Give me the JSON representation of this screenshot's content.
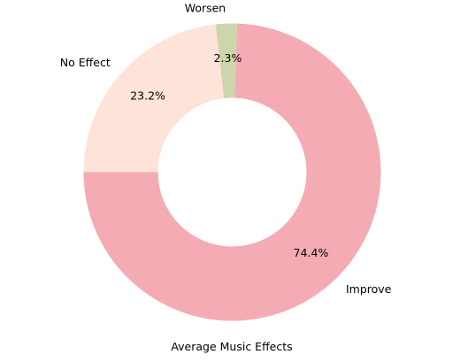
{
  "chart_data": {
    "type": "pie",
    "donut": true,
    "xlabel": "Average Music Effects",
    "slices": [
      {
        "label": "Improve",
        "value": 74.4,
        "pct_label": "74.4%",
        "color": "#f4abb4"
      },
      {
        "label": "Worsen",
        "value": 2.3,
        "pct_label": "2.3%",
        "color": "#cdd5aa"
      },
      {
        "label": "No Effect",
        "value": 23.2,
        "pct_label": "23.2%",
        "color": "#fde3d8"
      }
    ]
  }
}
